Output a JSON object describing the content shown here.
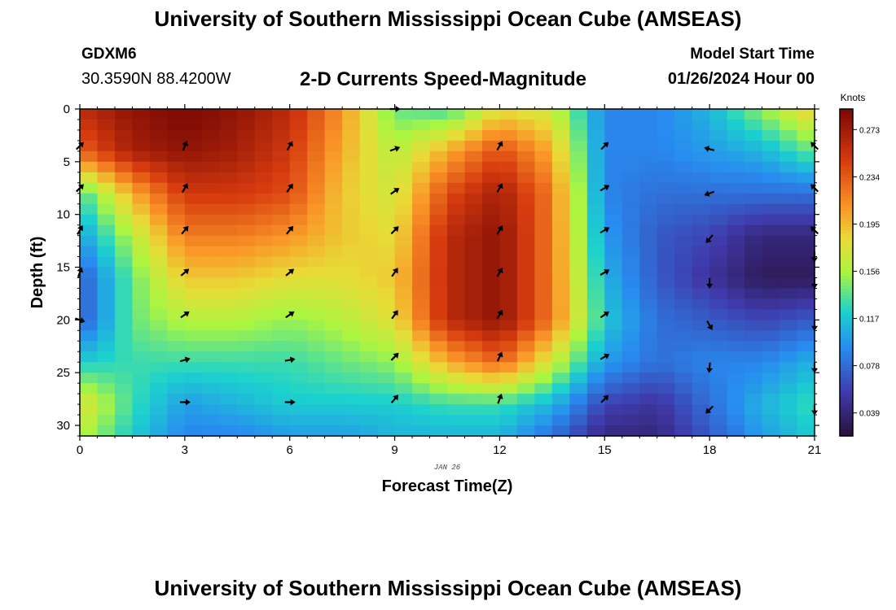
{
  "header": {
    "title": "University of Southern Mississippi Ocean Cube (AMSEAS)",
    "station": "GDXM6",
    "coords": "30.3590N  88.4200W",
    "plot_title": "2-D Currents Speed-Magnitude",
    "start_label": "Model Start Time",
    "start_value": "01/26/2024 Hour 00"
  },
  "footer": {
    "title": "University of Southern Mississippi Ocean Cube (AMSEAS)"
  },
  "chart_data": {
    "type": "heatmap",
    "title": "2-D Currents Speed-Magnitude",
    "xlabel": "Forecast Time(Z)",
    "ylabel": "Depth (ft)",
    "date_label": "JAN 26",
    "x_ticks": [
      0,
      3,
      6,
      9,
      12,
      15,
      18,
      21
    ],
    "x_tick_labels": [
      "0",
      "3",
      "6",
      "9",
      "12",
      "15",
      "18",
      "21"
    ],
    "y_ticks": [
      0,
      5,
      10,
      15,
      20,
      25,
      30
    ],
    "y_tick_labels": [
      "0",
      "5",
      "10",
      "15",
      "20",
      "25",
      "30"
    ],
    "xlim": [
      0,
      21
    ],
    "ylim": [
      0,
      31
    ],
    "y_inverted": true,
    "colorbar": {
      "unit_label": "Knots",
      "min": 0.02,
      "max": 0.29,
      "tick_values": [
        0.273,
        0.234,
        0.195,
        0.156,
        0.117,
        0.078,
        0.039
      ],
      "tick_labels": [
        "0.273",
        "0.234",
        "0.195",
        "0.156",
        "0.117",
        "0.078",
        "0.039"
      ]
    },
    "x_grid": [
      0,
      1.5,
      3,
      4.5,
      6,
      7.5,
      9,
      10.5,
      12,
      13.5,
      15,
      16.5,
      18,
      19.5,
      21
    ],
    "depth_grid": [
      0,
      4,
      8,
      12,
      16,
      20,
      24,
      28,
      31
    ],
    "speed_knots": [
      [
        0.26,
        0.28,
        0.29,
        0.28,
        0.26,
        0.21,
        0.14,
        0.13,
        0.18,
        0.17,
        0.09,
        0.09,
        0.11,
        0.15,
        0.19
      ],
      [
        0.23,
        0.27,
        0.28,
        0.27,
        0.25,
        0.2,
        0.16,
        0.2,
        0.24,
        0.2,
        0.09,
        0.09,
        0.1,
        0.11,
        0.14
      ],
      [
        0.13,
        0.2,
        0.25,
        0.25,
        0.24,
        0.19,
        0.17,
        0.24,
        0.27,
        0.22,
        0.09,
        0.08,
        0.08,
        0.08,
        0.08
      ],
      [
        0.1,
        0.16,
        0.22,
        0.22,
        0.21,
        0.19,
        0.18,
        0.26,
        0.28,
        0.22,
        0.1,
        0.07,
        0.06,
        0.04,
        0.04
      ],
      [
        0.07,
        0.14,
        0.19,
        0.19,
        0.18,
        0.18,
        0.19,
        0.26,
        0.28,
        0.22,
        0.11,
        0.07,
        0.05,
        0.03,
        0.03
      ],
      [
        0.07,
        0.14,
        0.16,
        0.16,
        0.15,
        0.16,
        0.18,
        0.26,
        0.28,
        0.22,
        0.12,
        0.08,
        0.07,
        0.06,
        0.07
      ],
      [
        0.12,
        0.13,
        0.13,
        0.13,
        0.13,
        0.14,
        0.15,
        0.2,
        0.23,
        0.17,
        0.1,
        0.08,
        0.09,
        0.09,
        0.11
      ],
      [
        0.18,
        0.13,
        0.1,
        0.11,
        0.12,
        0.12,
        0.12,
        0.13,
        0.13,
        0.11,
        0.06,
        0.05,
        0.08,
        0.11,
        0.13
      ],
      [
        0.16,
        0.12,
        0.09,
        0.09,
        0.1,
        0.1,
        0.11,
        0.11,
        0.11,
        0.08,
        0.04,
        0.04,
        0.07,
        0.1,
        0.12
      ]
    ],
    "arrows": [
      {
        "t": 0,
        "d": 3.5,
        "angle": 45
      },
      {
        "t": 0,
        "d": 7.5,
        "angle": 45
      },
      {
        "t": 0,
        "d": 11.5,
        "angle": 60
      },
      {
        "t": 0,
        "d": 15.5,
        "angle": 70
      },
      {
        "t": 0,
        "d": 20,
        "angle": -20
      },
      {
        "t": 3,
        "d": 3.5,
        "angle": 70
      },
      {
        "t": 3,
        "d": 7.5,
        "angle": 60
      },
      {
        "t": 3,
        "d": 11.5,
        "angle": 50
      },
      {
        "t": 3,
        "d": 15.5,
        "angle": 40
      },
      {
        "t": 3,
        "d": 19.5,
        "angle": 35
      },
      {
        "t": 3,
        "d": 23.8,
        "angle": 15
      },
      {
        "t": 3,
        "d": 27.8,
        "angle": 0
      },
      {
        "t": 6,
        "d": 3.5,
        "angle": 60
      },
      {
        "t": 6,
        "d": 7.5,
        "angle": 55
      },
      {
        "t": 6,
        "d": 11.5,
        "angle": 50
      },
      {
        "t": 6,
        "d": 15.5,
        "angle": 40
      },
      {
        "t": 6,
        "d": 19.5,
        "angle": 35
      },
      {
        "t": 6,
        "d": 23.8,
        "angle": 10
      },
      {
        "t": 6,
        "d": 27.8,
        "angle": 0
      },
      {
        "t": 9,
        "d": 0,
        "angle": 0
      },
      {
        "t": 9,
        "d": 3.8,
        "angle": 20
      },
      {
        "t": 9,
        "d": 7.8,
        "angle": 35
      },
      {
        "t": 9,
        "d": 11.5,
        "angle": 45
      },
      {
        "t": 9,
        "d": 15.5,
        "angle": 55
      },
      {
        "t": 9,
        "d": 19.5,
        "angle": 55
      },
      {
        "t": 9,
        "d": 23.5,
        "angle": 45
      },
      {
        "t": 9,
        "d": 27.5,
        "angle": 50
      },
      {
        "t": 12,
        "d": 3.5,
        "angle": 60
      },
      {
        "t": 12,
        "d": 7.5,
        "angle": 60
      },
      {
        "t": 12,
        "d": 11.5,
        "angle": 60
      },
      {
        "t": 12,
        "d": 15.5,
        "angle": 60
      },
      {
        "t": 12,
        "d": 19.5,
        "angle": 60
      },
      {
        "t": 12,
        "d": 23.5,
        "angle": 65
      },
      {
        "t": 12,
        "d": 27.5,
        "angle": 70
      },
      {
        "t": 15,
        "d": 3.5,
        "angle": 45
      },
      {
        "t": 15,
        "d": 7.5,
        "angle": 30
      },
      {
        "t": 15,
        "d": 11.5,
        "angle": 30
      },
      {
        "t": 15,
        "d": 15.5,
        "angle": 30
      },
      {
        "t": 15,
        "d": 19.5,
        "angle": 35
      },
      {
        "t": 15,
        "d": 23.5,
        "angle": 30
      },
      {
        "t": 15,
        "d": 27.5,
        "angle": 45
      },
      {
        "t": 18,
        "d": 3.8,
        "angle": 165
      },
      {
        "t": 18,
        "d": 8,
        "angle": 200
      },
      {
        "t": 18,
        "d": 12.3,
        "angle": 230
      },
      {
        "t": 18,
        "d": 16.5,
        "angle": 270
      },
      {
        "t": 18,
        "d": 20.5,
        "angle": 300
      },
      {
        "t": 18,
        "d": 24.5,
        "angle": 265
      },
      {
        "t": 18,
        "d": 28.5,
        "angle": 225
      },
      {
        "t": 21,
        "d": 3.5,
        "angle": 135
      },
      {
        "t": 21,
        "d": 7.5,
        "angle": 135
      },
      {
        "t": 21,
        "d": 11.5,
        "angle": 135
      },
      {
        "t": 21,
        "d": 14,
        "angle": 270
      },
      {
        "t": 21,
        "d": 16.5,
        "angle": 270
      },
      {
        "t": 21,
        "d": 20.5,
        "angle": 270
      },
      {
        "t": 21,
        "d": 24.5,
        "angle": 270
      },
      {
        "t": 21,
        "d": 28.5,
        "angle": 270
      }
    ]
  }
}
